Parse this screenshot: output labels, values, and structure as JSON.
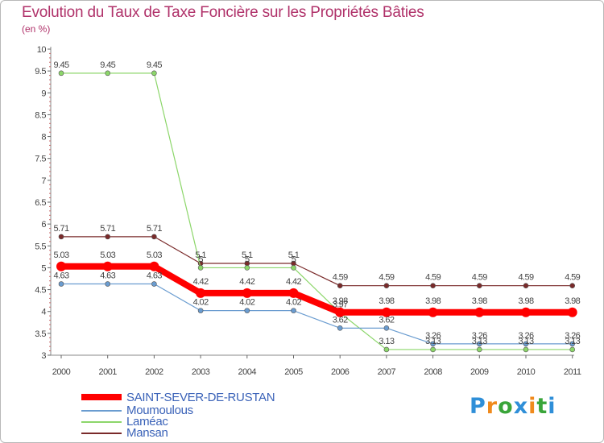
{
  "title": "Evolution du Taux de Taxe Foncière sur les Propriétés Bâties",
  "unit": "(en %)",
  "logo": {
    "letters": [
      "P",
      "r",
      "o",
      "x",
      "i",
      "t",
      "i"
    ],
    "colors": [
      "#2f8fd8",
      "#f08a1c",
      "#3aa53a",
      "#2f8fd8",
      "#f08a1c",
      "#3aa53a",
      "#2f8fd8"
    ]
  },
  "chart_data": {
    "type": "line",
    "title": "Evolution du Taux de Taxe Foncière sur les Propriétés Bâties",
    "ylabel": "(en %)",
    "xlabel": "",
    "ylim": [
      3,
      10
    ],
    "x": [
      "2000",
      "2001",
      "2002",
      "2003",
      "2004",
      "2005",
      "2006",
      "2007",
      "2008",
      "2009",
      "2010",
      "2011"
    ],
    "yticks": [
      "3",
      "3.5",
      "4",
      "4.5",
      "5",
      "5.5",
      "6",
      "6.5",
      "7",
      "7.5",
      "8",
      "8.5",
      "9",
      "9.5",
      "10"
    ],
    "series": [
      {
        "name": "Mansan",
        "color": "#7a2a2a",
        "width": 1.2,
        "marker": 3,
        "values": [
          5.71,
          5.71,
          5.71,
          5.1,
          5.1,
          5.1,
          4.59,
          4.59,
          4.59,
          4.59,
          4.59,
          4.59
        ],
        "labels": [
          "5.71",
          "5.71",
          "5.71",
          "5.1",
          "5.1",
          "5.1",
          "4.59",
          "4.59",
          "4.59",
          "4.59",
          "4.59",
          "4.59"
        ]
      },
      {
        "name": "Laméac",
        "color": "#8cd66a",
        "width": 1.2,
        "marker": 3,
        "values": [
          9.45,
          9.45,
          9.45,
          5.0,
          5.0,
          5.0,
          3.97,
          3.13,
          3.13,
          3.13,
          3.13,
          3.13
        ],
        "labels": [
          "9.45",
          "9.45",
          "9.45",
          "5",
          "5",
          "5",
          "3.97",
          "3.13",
          "3.13",
          "3.13",
          "3.13",
          "3.13"
        ]
      },
      {
        "name": "Moumoulous",
        "color": "#6a9cd0",
        "width": 1.2,
        "marker": 3,
        "values": [
          4.63,
          4.63,
          4.63,
          4.02,
          4.02,
          4.02,
          3.62,
          3.62,
          3.26,
          3.26,
          3.26,
          3.26
        ],
        "labels": [
          "4.63",
          "4.63",
          "4.63",
          "4.02",
          "4.02",
          "4.02",
          "3.62",
          "3.62",
          "3.26",
          "3.26",
          "3.26",
          "3.26"
        ]
      },
      {
        "name": "SAINT-SEVER-DE-RUSTAN",
        "color": "#ff0000",
        "width": 8,
        "marker": 6,
        "values": [
          5.03,
          5.03,
          5.03,
          4.42,
          4.42,
          4.42,
          3.98,
          3.98,
          3.98,
          3.98,
          3.98,
          3.98
        ],
        "labels": [
          "5.03",
          "5.03",
          "5.03",
          "4.42",
          "4.42",
          "4.42",
          "3.98",
          "3.98",
          "3.98",
          "3.98",
          "3.98",
          "3.98"
        ]
      }
    ],
    "legend": [
      "SAINT-SEVER-DE-RUSTAN",
      "Moumoulous",
      "Laméac",
      "Mansan"
    ],
    "legend_position": "bottom-left",
    "grid": false
  }
}
